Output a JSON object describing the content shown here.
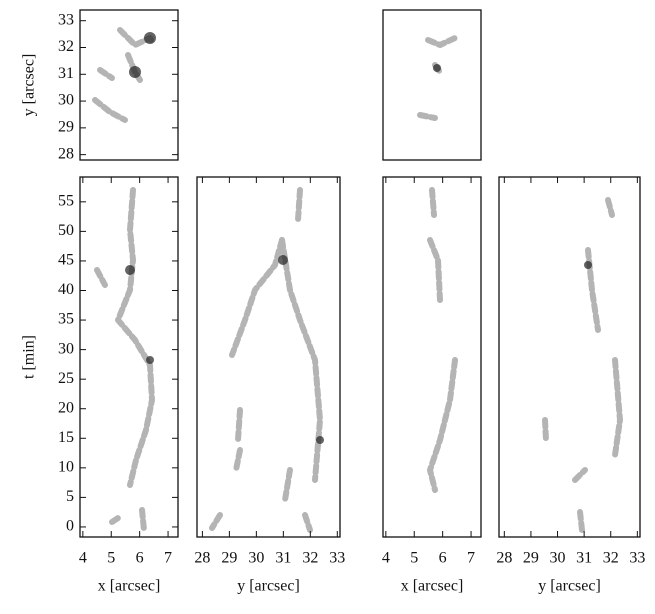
{
  "chart_data": [
    {
      "type": "image",
      "xlim": [
        3.9,
        7.35
      ],
      "ylim": [
        27.8,
        33.4
      ],
      "yticks": [
        28,
        29,
        30,
        31,
        32,
        33
      ],
      "ylabel": "y [arcsec]"
    },
    {
      "type": "image",
      "xlim": [
        3.9,
        7.35
      ],
      "ylim": [
        27.8,
        33.4
      ]
    },
    {
      "type": "image",
      "xlim": [
        3.9,
        7.35
      ],
      "ylim": [
        -1.7,
        59.2
      ],
      "xticks": [
        4,
        5,
        6,
        7
      ],
      "yticks": [
        0,
        5,
        10,
        15,
        20,
        25,
        30,
        35,
        40,
        45,
        50,
        55
      ],
      "xlabel": "x [arcsec]",
      "ylabel": "t [min]"
    },
    {
      "type": "image",
      "xlim": [
        27.8,
        33.1
      ],
      "ylim": [
        -1.7,
        59.2
      ],
      "xticks": [
        28,
        29,
        30,
        31,
        32,
        33
      ],
      "xlabel": "y [arcsec]"
    },
    {
      "type": "image",
      "xlim": [
        3.9,
        7.35
      ],
      "ylim": [
        -1.7,
        59.2
      ],
      "xticks": [
        4,
        5,
        6,
        7
      ],
      "xlabel": "x [arcsec]"
    },
    {
      "type": "image",
      "xlim": [
        27.8,
        33.1
      ],
      "ylim": [
        -1.7,
        59.2
      ],
      "xticks": [
        28,
        29,
        30,
        31,
        32,
        33
      ],
      "xlabel": "y [arcsec]"
    }
  ]
}
